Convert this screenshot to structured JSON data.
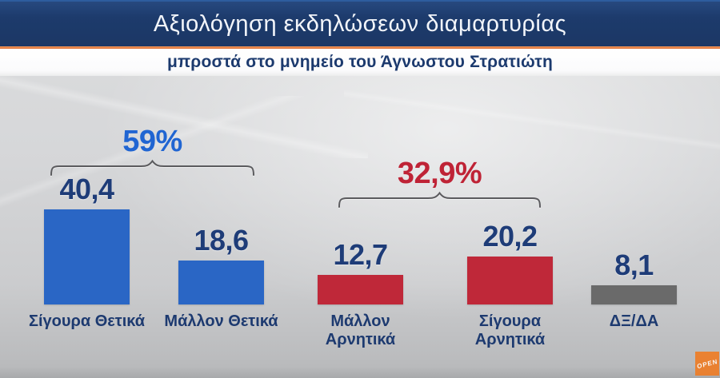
{
  "header": {
    "title": "Αξιολόγηση εκδηλώσεων διαμαρτυρίας",
    "subtitle": "μπροστά στο μνημείο του Άγνωστου Στρατιώτη"
  },
  "chart_data": {
    "type": "bar",
    "title": "Αξιολόγηση εκδηλώσεων διαμαρτυρίας",
    "subtitle": "μπροστά στο μνημείο του Άγνωστου Στρατιώτη",
    "categories": [
      "Σίγουρα Θετικά",
      "Μάλλον Θετικά",
      "Μάλλον Αρνητικά",
      "Σίγουρα Αρνητικά",
      "ΔΞ/ΔΑ"
    ],
    "values": [
      40.4,
      18.6,
      12.7,
      20.2,
      8.1
    ],
    "value_labels": [
      "40,4",
      "18,6",
      "12,7",
      "20,2",
      "8,1"
    ],
    "bar_colors": [
      "#2a66c5",
      "#2a66c5",
      "#bf2839",
      "#bf2839",
      "#6a6a6a"
    ],
    "groups": [
      {
        "label": "59%",
        "color": "#2065d2",
        "bars": [
          0,
          1
        ]
      },
      {
        "label": "32,9%",
        "color": "#bf2336",
        "bars": [
          2,
          3
        ]
      }
    ],
    "xlabel": "",
    "ylabel": "",
    "ylim": [
      0,
      45
    ],
    "grid": false,
    "legend": "none"
  },
  "branding": {
    "logo_text": "OPEN",
    "logo_color": "#ee7d27"
  },
  "colors": {
    "header_bg": "#1d3b6c",
    "accent_line": "#dd6f33",
    "value_text": "#1e3c78",
    "category_text": "#1d3a70",
    "bracket_stroke": "#5b5b5e"
  }
}
